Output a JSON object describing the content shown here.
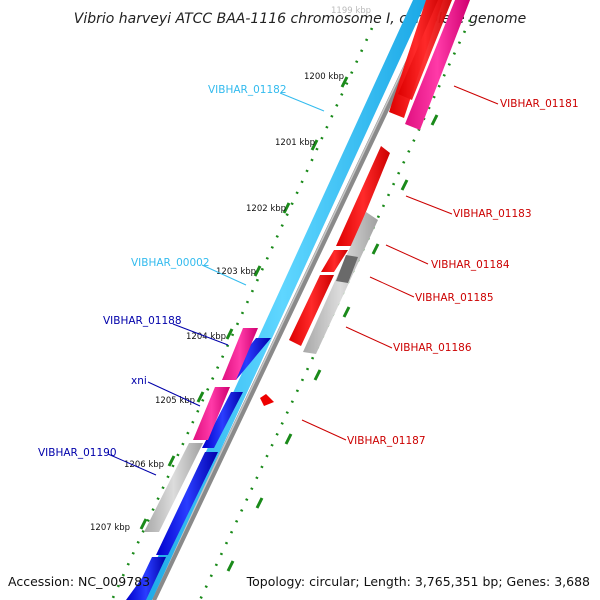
{
  "title": "Vibrio harveyi ATCC BAA-1116 chromosome I, complete genome",
  "footer": {
    "accession": "Accession: NC_009783",
    "summary": "Topology: circular; Length: 3,765,351 bp; Genes: 3,688"
  },
  "ticks": [
    "1199 kbp",
    "1200 kbp",
    "1201 kbp",
    "1202 kbp",
    "1203 kbp",
    "1204 kbp",
    "1205 kbp",
    "1206 kbp",
    "1207 kbp"
  ],
  "labels": {
    "vibhar_01181": "VIBHAR_01181",
    "vibhar_01182": "VIBHAR_01182",
    "vibhar_01183": "VIBHAR_01183",
    "vibhar_01184": "VIBHAR_01184",
    "vibhar_01185": "VIBHAR_01185",
    "vibhar_01186": "VIBHAR_01186",
    "vibhar_01187": "VIBHAR_01187",
    "vibhar_00002": "VIBHAR_00002",
    "vibhar_01188": "VIBHAR_01188",
    "xni": "xni",
    "vibhar_01190": "VIBHAR_01190"
  },
  "colors": {
    "forward_cds": "#ff0000",
    "forward_gene": "#ff1493",
    "reverse_cds": "#0000ee",
    "reverse_gene": "#ff1493",
    "rna": "#33ccff",
    "pseudo": "#c0c0c0",
    "backbone": "#808080",
    "ticks": "#008000",
    "label_red": "#cc0000",
    "label_cyan": "#33bbee",
    "label_blue": "#0000aa"
  }
}
